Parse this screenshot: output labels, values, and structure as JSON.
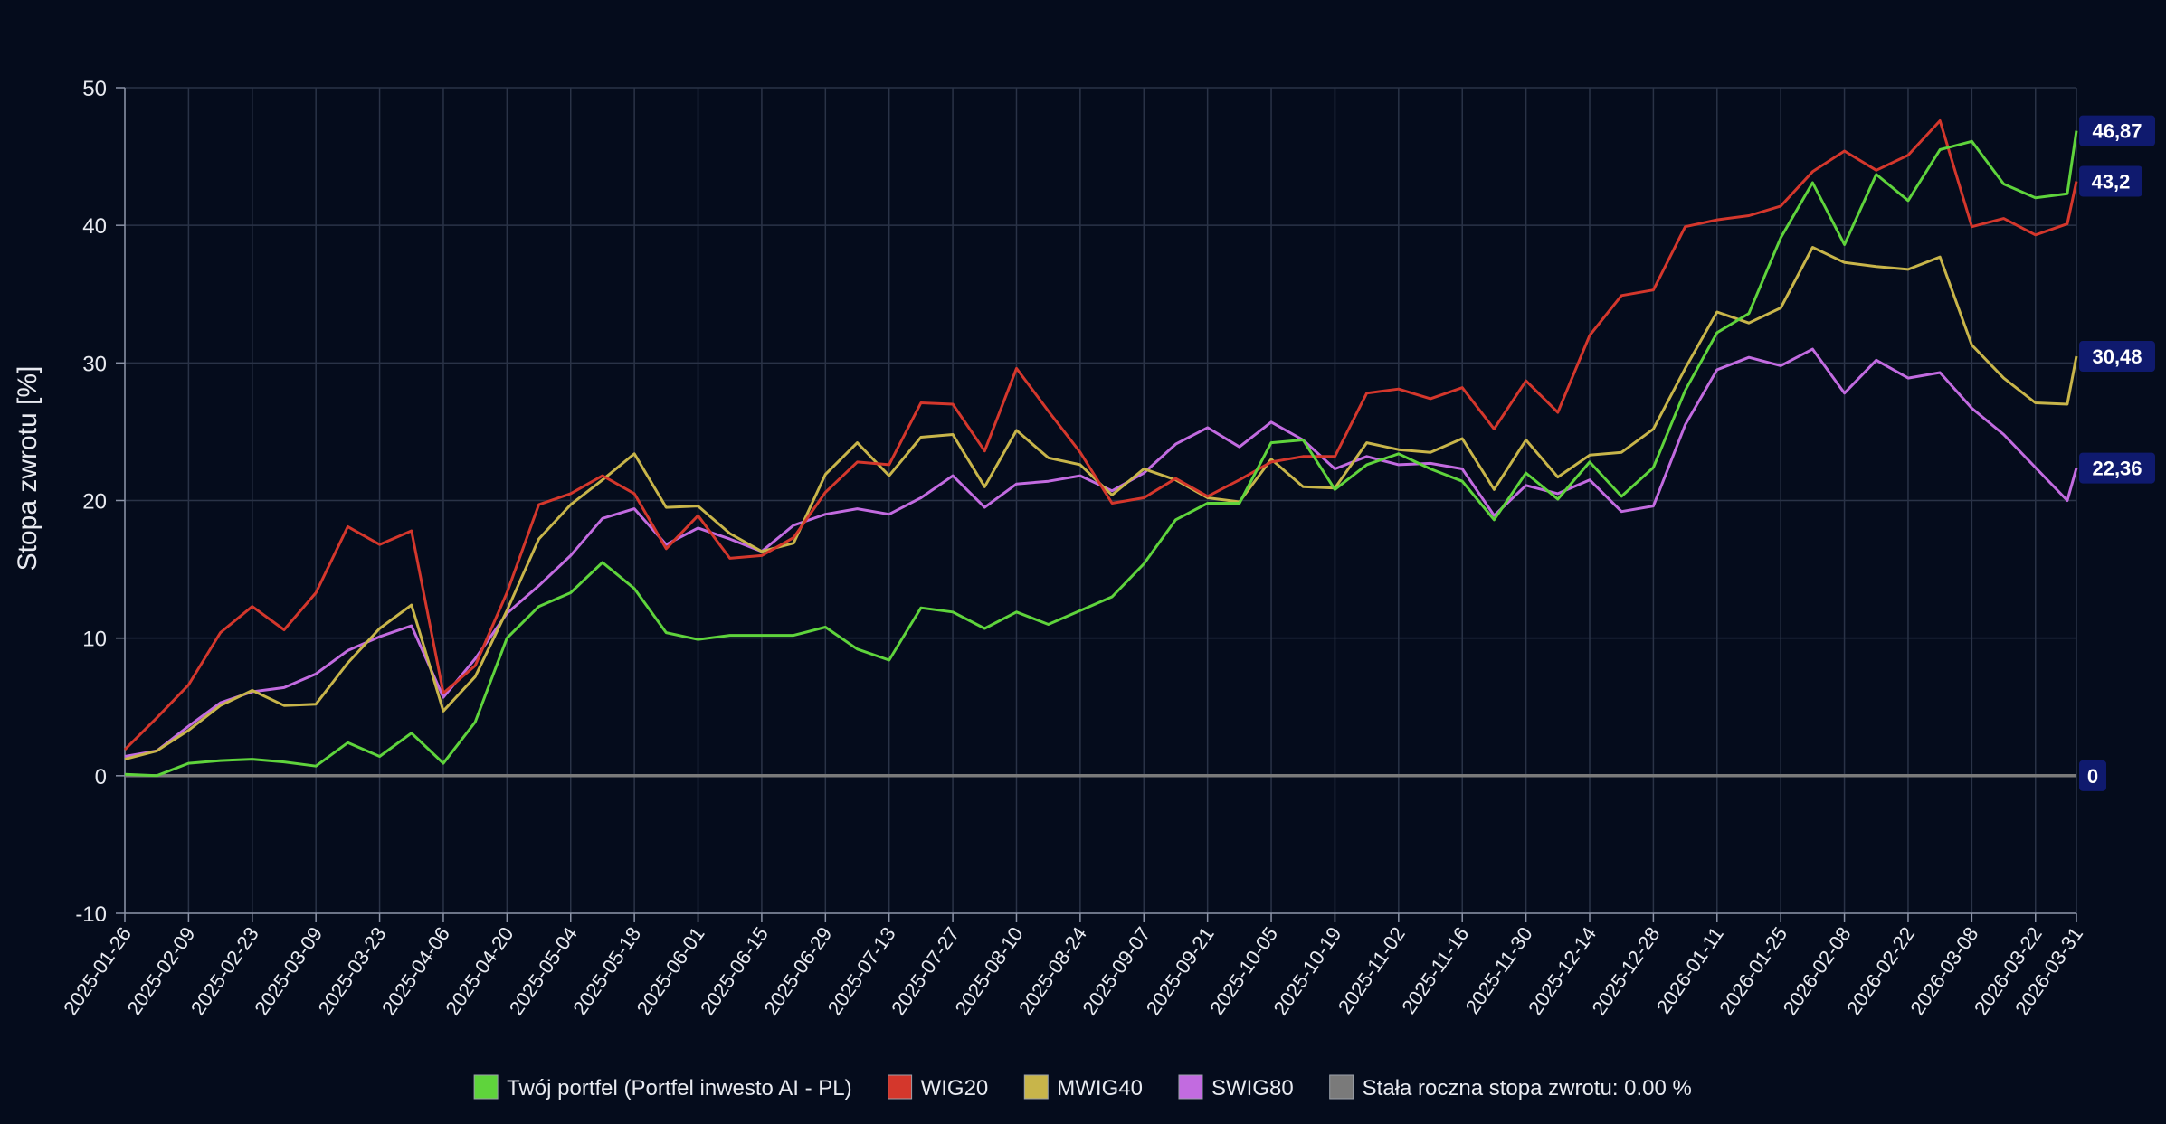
{
  "chart_data": {
    "type": "line",
    "title": "",
    "xlabel": "",
    "ylabel": "Stopa zwrotu [%]",
    "ylim": [
      -10,
      50
    ],
    "yticks": [
      -10,
      0,
      10,
      20,
      30,
      40,
      50
    ],
    "grid": true,
    "legend_position": "bottom-center",
    "x_tick_labels": [
      "2025-01-26",
      "2025-02-09",
      "2025-02-23",
      "2025-03-09",
      "2025-03-23",
      "2025-04-06",
      "2025-04-20",
      "2025-05-04",
      "2025-05-18",
      "2025-06-01",
      "2025-06-15",
      "2025-06-29",
      "2025-07-13",
      "2025-07-27",
      "2025-08-10",
      "2025-08-24",
      "2025-09-07",
      "2025-09-21",
      "2025-10-05",
      "2025-10-19",
      "2025-11-02",
      "2025-11-16",
      "2025-11-30",
      "2025-12-14",
      "2025-12-28",
      "2026-01-11",
      "2026-01-25",
      "2026-02-08",
      "2026-02-22",
      "2026-03-08",
      "2026-03-22",
      "2026-03-31"
    ],
    "x": [
      "2025-01-26",
      "2025-02-02",
      "2025-02-09",
      "2025-02-16",
      "2025-02-23",
      "2025-03-02",
      "2025-03-09",
      "2025-03-16",
      "2025-03-23",
      "2025-03-30",
      "2025-04-06",
      "2025-04-13",
      "2025-04-20",
      "2025-04-27",
      "2025-05-04",
      "2025-05-11",
      "2025-05-18",
      "2025-05-25",
      "2025-06-01",
      "2025-06-08",
      "2025-06-15",
      "2025-06-22",
      "2025-06-29",
      "2025-07-06",
      "2025-07-13",
      "2025-07-20",
      "2025-07-27",
      "2025-08-03",
      "2025-08-10",
      "2025-08-17",
      "2025-08-24",
      "2025-08-31",
      "2025-09-07",
      "2025-09-14",
      "2025-09-21",
      "2025-09-28",
      "2025-10-05",
      "2025-10-12",
      "2025-10-19",
      "2025-10-26",
      "2025-11-02",
      "2025-11-09",
      "2025-11-16",
      "2025-11-23",
      "2025-11-30",
      "2025-12-07",
      "2025-12-14",
      "2025-12-21",
      "2025-12-28",
      "2026-01-04",
      "2026-01-11",
      "2026-01-18",
      "2026-01-25",
      "2026-02-01",
      "2026-02-08",
      "2026-02-15",
      "2026-02-22",
      "2026-03-01",
      "2026-03-08",
      "2026-03-15",
      "2026-03-22",
      "2026-03-29",
      "2026-03-31"
    ],
    "series": [
      {
        "name": "Twój portfel (Portfel inwesto AI - PL)",
        "color": "#5fd43c",
        "end_label": "46,87",
        "values": [
          0.1,
          0.0,
          0.9,
          1.1,
          1.2,
          1.0,
          0.7,
          2.4,
          1.4,
          3.1,
          0.9,
          3.9,
          10.0,
          12.3,
          13.3,
          15.5,
          13.6,
          10.4,
          9.9,
          10.2,
          10.2,
          10.2,
          10.8,
          9.2,
          8.4,
          12.2,
          11.9,
          10.7,
          11.9,
          11.0,
          12.0,
          13.0,
          15.4,
          18.6,
          19.8,
          19.8,
          24.2,
          24.4,
          20.8,
          22.6,
          23.4,
          22.3,
          21.4,
          18.6,
          22.0,
          20.1,
          22.8,
          20.3,
          22.4,
          28.0,
          32.2,
          33.6,
          39.1,
          43.1,
          38.6,
          43.7,
          41.8,
          45.5,
          46.1,
          43.0,
          42.0,
          42.3,
          46.87
        ]
      },
      {
        "name": "WIG20",
        "color": "#d4372c",
        "end_label": "43,2",
        "values": [
          1.9,
          4.2,
          6.6,
          10.4,
          12.3,
          10.6,
          13.3,
          18.1,
          16.8,
          17.8,
          6.0,
          8.0,
          13.3,
          19.7,
          20.5,
          21.8,
          20.5,
          16.5,
          18.9,
          15.8,
          16.0,
          17.3,
          20.6,
          22.8,
          22.6,
          27.1,
          27.0,
          23.6,
          29.6,
          26.5,
          23.5,
          19.8,
          20.2,
          21.6,
          20.3,
          21.5,
          22.8,
          23.2,
          23.2,
          27.8,
          28.1,
          27.4,
          28.2,
          25.2,
          28.7,
          26.4,
          32.0,
          34.9,
          35.3,
          39.9,
          40.4,
          40.7,
          41.4,
          43.9,
          45.4,
          44.0,
          45.1,
          47.6,
          39.9,
          40.5,
          39.3,
          40.1,
          43.2
        ]
      },
      {
        "name": "MWIG40",
        "color": "#c8b54a",
        "end_label": "30,48",
        "values": [
          1.2,
          1.8,
          3.3,
          5.1,
          6.2,
          5.1,
          5.2,
          8.2,
          10.7,
          12.4,
          4.7,
          7.2,
          12.0,
          17.2,
          19.7,
          21.5,
          23.4,
          19.5,
          19.6,
          17.6,
          16.3,
          16.9,
          21.9,
          24.2,
          21.8,
          24.6,
          24.8,
          21.0,
          25.1,
          23.1,
          22.6,
          20.4,
          22.3,
          21.5,
          20.2,
          19.9,
          23.0,
          21.0,
          20.9,
          24.2,
          23.7,
          23.5,
          24.5,
          20.8,
          24.4,
          21.7,
          23.3,
          23.5,
          25.2,
          29.6,
          33.7,
          32.9,
          34.0,
          38.4,
          37.3,
          37.0,
          36.8,
          37.7,
          31.3,
          28.9,
          27.1,
          27.0,
          30.48
        ]
      },
      {
        "name": "SWIG80",
        "color": "#c26be0",
        "end_label": "22,36",
        "values": [
          1.4,
          1.8,
          3.6,
          5.3,
          6.1,
          6.4,
          7.4,
          9.1,
          10.1,
          10.9,
          5.7,
          8.5,
          11.8,
          13.8,
          16.0,
          18.7,
          19.4,
          16.8,
          18.0,
          17.2,
          16.3,
          18.2,
          19.0,
          19.4,
          19.0,
          20.2,
          21.8,
          19.5,
          21.2,
          21.4,
          21.8,
          20.7,
          22.0,
          24.1,
          25.3,
          23.9,
          25.7,
          24.4,
          22.3,
          23.2,
          22.6,
          22.7,
          22.3,
          18.9,
          21.1,
          20.5,
          21.5,
          19.2,
          19.6,
          25.5,
          29.5,
          30.4,
          29.8,
          31.0,
          27.8,
          30.2,
          28.9,
          29.3,
          26.7,
          24.8,
          22.4,
          20.0,
          22.36
        ]
      },
      {
        "name": "Stała roczna stopa zwrotu: 0.00 %",
        "color": "#7a7a7a",
        "end_label": "0",
        "values": [
          0,
          0,
          0,
          0,
          0,
          0,
          0,
          0,
          0,
          0,
          0,
          0,
          0,
          0,
          0,
          0,
          0,
          0,
          0,
          0,
          0,
          0,
          0,
          0,
          0,
          0,
          0,
          0,
          0,
          0,
          0,
          0,
          0,
          0,
          0,
          0,
          0,
          0,
          0,
          0,
          0,
          0,
          0,
          0,
          0,
          0,
          0,
          0,
          0,
          0,
          0,
          0,
          0,
          0,
          0,
          0,
          0,
          0,
          0,
          0,
          0,
          0,
          0
        ]
      }
    ]
  }
}
